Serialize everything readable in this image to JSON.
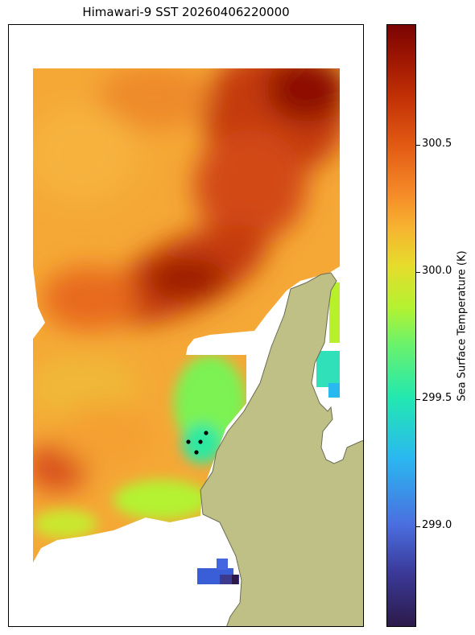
{
  "title": "Himawari-9 SST 20260406220000",
  "colorbar": {
    "label": "Sea Surface Temperature (K)",
    "ticks": [
      "300.5",
      "300.0",
      "299.5",
      "299.0"
    ]
  },
  "colors": {
    "land": "#bfc085",
    "coast": "#6b6b55",
    "marker": "#000000"
  }
}
